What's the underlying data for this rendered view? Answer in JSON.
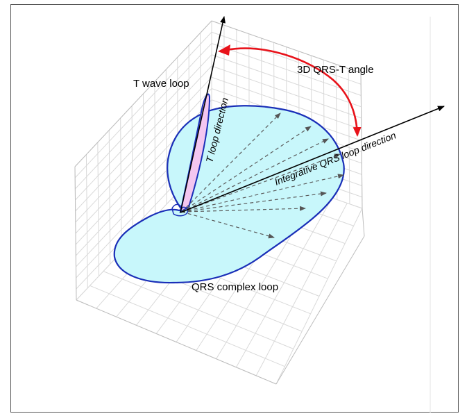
{
  "labels": {
    "angle": "3D QRS-T angle",
    "t_wave_loop": "T wave loop",
    "t_loop_direction": "T loop direction",
    "qrs_direction": "Integrative QRS loop direction",
    "qrs_complex_loop": "QRS complex loop"
  },
  "colors": {
    "qrs_fill": "#c8f7fb",
    "qrs_stroke": "#1a2fb8",
    "t_fill": "#f3c6f0",
    "t_stroke": "#1a2fb8",
    "angle_arc": "#e8121a",
    "vector_arrow": "#000000",
    "dashed_vector": "#5a5a5a",
    "grid": "#d9d9d9",
    "border": "#555555"
  }
}
